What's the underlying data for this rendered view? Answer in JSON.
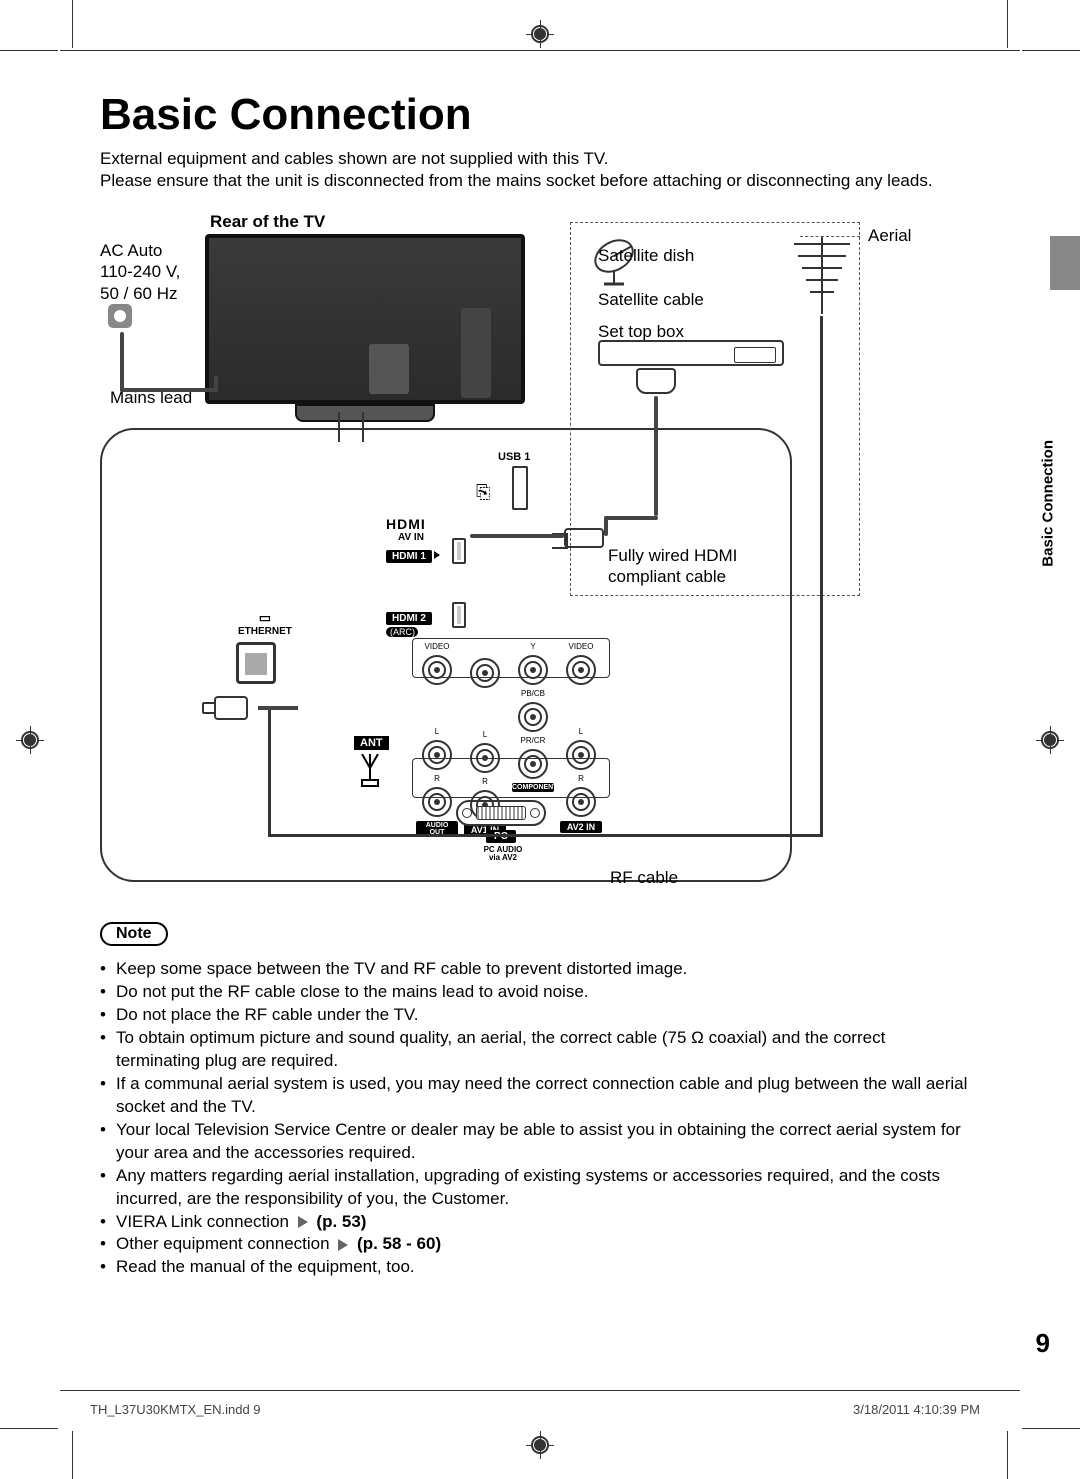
{
  "title": "Basic Connection",
  "intro_lines": [
    "External equipment and cables shown are not supplied with this TV.",
    "Please ensure that the unit is disconnected from the mains socket before attaching or disconnecting any leads."
  ],
  "side_tab": "Basic Connection",
  "diagram": {
    "rear_label": "Rear of the TV",
    "ac_lines": [
      "AC Auto",
      "110-240 V,",
      "50 / 60 Hz"
    ],
    "mains_lead": "Mains lead",
    "rf_cable": "RF cable",
    "usb_label": "USB 1",
    "hdmi_logo": "HDMI",
    "av_in": "AV IN",
    "hdmi1": "HDMI 1",
    "hdmi2": "HDMI 2",
    "arc": "(ARC)",
    "ethernet": "ETHERNET",
    "ant": "ANT",
    "audio_out": "AUDIO\nOUT",
    "av1_in": "AV1 IN",
    "component": "COMPONENT",
    "av2_in": "AV2 IN",
    "video": "VIDEO",
    "y": "Y",
    "pb": "PB/CB",
    "pr": "PR/CR",
    "l": "L",
    "r": "R",
    "pc": "PC",
    "pc_audio": "PC AUDIO\nvia AV2",
    "satellite_dish": "Satellite dish",
    "satellite_cable": "Satellite cable",
    "set_top_box": "Set top box",
    "hdmi_cable": "Fully wired HDMI compliant cable",
    "aerial": "Aerial"
  },
  "note_label": "Note",
  "notes": [
    "Keep some space between the TV and RF cable to prevent distorted image.",
    "Do not put the RF cable close to the mains lead to avoid noise.",
    "Do not place the RF cable under the TV.",
    "To obtain optimum picture and sound quality, an aerial, the correct cable (75 Ω coaxial) and the correct terminating plug are required.",
    "If a communal aerial system is used, you may need the correct connection cable and plug between the wall aerial socket and the TV.",
    "Your local Television Service Centre or dealer may be able to assist you in obtaining the correct aerial system for your area and the accessories required.",
    "Any matters regarding aerial installation, upgrading of existing systems or accessories required, and the costs incurred, are the responsibility of you, the Customer.",
    "VIERA Link connection ➡ <b>(p. 53)</b>",
    "Other equipment connection ➡ <b>(p. 58 - 60)</b>",
    "Read the manual of the equipment, too."
  ],
  "page_number": "9",
  "footer_left": "TH_L37U30KMTX_EN.indd   9",
  "footer_right": "3/18/2011   4:10:39 PM",
  "colors": {
    "text": "#000000",
    "background": "#ffffff",
    "dashed_border": "#555555",
    "tv_body": "#2f2f2f",
    "gray_tab": "#888888"
  }
}
